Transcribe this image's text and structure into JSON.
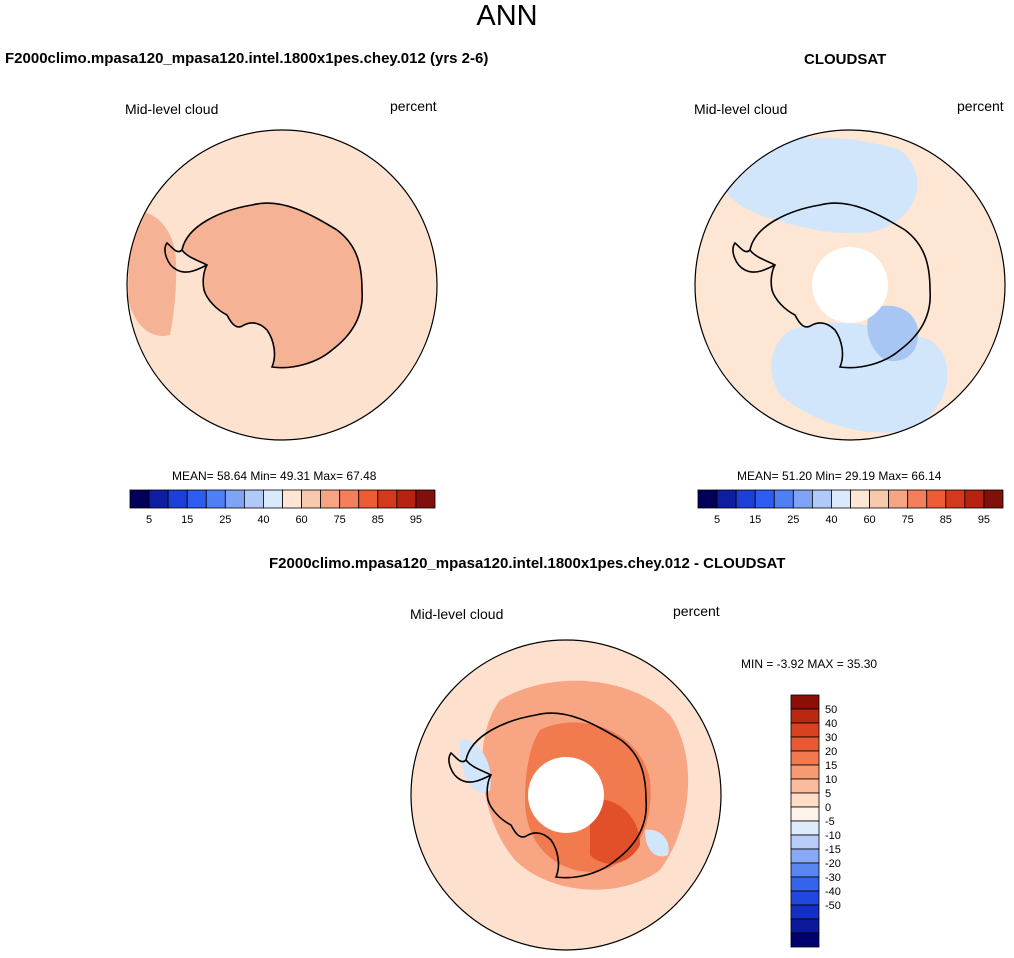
{
  "figure": {
    "season": "ANN",
    "colors": {
      "ocean_model": "#fde2cf",
      "antarctica_model": "#f6b295",
      "ocean_obs": "#fde6d3",
      "obs_blue": "#d2e6fb",
      "obs_mid_blue": "#a8c6f4",
      "diff_light": "#fde0cd",
      "diff_mid": "#f8a583",
      "diff_strong": "#f17a4f",
      "diff_max": "#e2502a"
    }
  },
  "chart_data": [
    {
      "type": "heatmap",
      "projection": "south-polar-stereographic",
      "title": "F2000climo.mpasa120_mpasa120.intel.1800x1pes.chey.012 (yrs 2-6)",
      "variable": "Mid-level cloud",
      "units": "percent",
      "stats": {
        "mean": 58.64,
        "min": 49.31,
        "max": 67.48
      },
      "stats_text": "MEAN=  58.64   Min=  49.31   Max=  67.48",
      "colorbar": {
        "colors": [
          "#00005a",
          "#0d1ea0",
          "#1c3fd7",
          "#2c5cf0",
          "#4f7ff5",
          "#7ea3f7",
          "#b0c9f8",
          "#daeafc",
          "#fde6d3",
          "#f9c9ad",
          "#f5a583",
          "#f3805a",
          "#ec5b33",
          "#d33a1c",
          "#b52311",
          "#80100a"
        ],
        "tick_labels": [
          "5",
          "15",
          "25",
          "40",
          "60",
          "75",
          "85",
          "95"
        ]
      }
    },
    {
      "type": "heatmap",
      "projection": "south-polar-stereographic",
      "title": "CLOUDSAT",
      "variable": "Mid-level cloud",
      "units": "percent",
      "stats": {
        "mean": 51.2,
        "min": 29.19,
        "max": 66.14
      },
      "stats_text": "MEAN=  51.20   Min=  29.19   Max=  66.14",
      "colorbar": {
        "colors": [
          "#00005a",
          "#0d1ea0",
          "#1c3fd7",
          "#2c5cf0",
          "#4f7ff5",
          "#7ea3f7",
          "#b0c9f8",
          "#daeafc",
          "#fde6d3",
          "#f9c9ad",
          "#f5a583",
          "#f3805a",
          "#ec5b33",
          "#d33a1c",
          "#b52311",
          "#80100a"
        ],
        "tick_labels": [
          "5",
          "15",
          "25",
          "40",
          "60",
          "75",
          "85",
          "95"
        ]
      }
    },
    {
      "type": "heatmap",
      "projection": "south-polar-stereographic",
      "title": "F2000climo.mpasa120_mpasa120.intel.1800x1pes.chey.012 - CLOUDSAT",
      "variable": "Mid-level cloud",
      "units": "percent",
      "stats": {
        "min": -3.92,
        "max": 35.3
      },
      "stats_text": "MIN =  -3.92 MAX =  35.30",
      "colorbar": {
        "colors": [
          "#000070",
          "#0a1a9a",
          "#1430c4",
          "#2048de",
          "#3463ec",
          "#5a86f2",
          "#88a9f5",
          "#b9cdf8",
          "#ddebfb",
          "#fdf3ea",
          "#fddcc8",
          "#fbbb9c",
          "#f79a73",
          "#f27850",
          "#e85a31",
          "#d8421e",
          "#b9290f",
          "#8b0f07"
        ],
        "tick_labels": [
          "50",
          "40",
          "30",
          "20",
          "15",
          "10",
          "5",
          "0",
          "-5",
          "-10",
          "-15",
          "-20",
          "-30",
          "-40",
          "-50"
        ]
      }
    }
  ]
}
